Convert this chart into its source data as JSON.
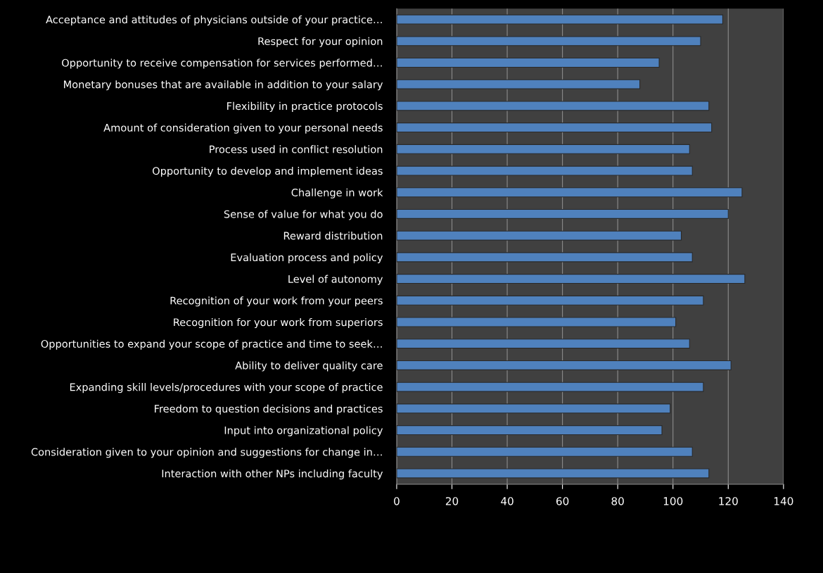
{
  "chart_data": {
    "type": "bar",
    "orientation": "horizontal",
    "categories": [
      "Acceptance and attitudes of physicians outside of your practice…",
      "Respect for your opinion",
      "Opportunity to receive compensation for services performed…",
      "Monetary bonuses that are available in addition to your salary",
      "Flexibility in practice protocols",
      "Amount of consideration given to your personal needs",
      "Process used in conflict resolution",
      "Opportunity to develop and implement ideas",
      "Challenge in work",
      "Sense of value for what you do",
      "Reward distribution",
      "Evaluation process and policy",
      "Level of autonomy",
      "Recognition of your work from your peers",
      "Recognition for your work from superiors",
      "Opportunities to expand your scope of practice and time to seek…",
      "Ability to deliver quality care",
      "Expanding skill levels/procedures with your scope of practice",
      "Freedom to question decisions and practices",
      "Input into organizational policy",
      "Consideration given to your opinion and suggestions for change in…",
      "Interaction with other NPs including faculty"
    ],
    "values": [
      118,
      110,
      95,
      88,
      113,
      114,
      106,
      107,
      125,
      120,
      103,
      107,
      126,
      111,
      101,
      106,
      121,
      111,
      99,
      96,
      107,
      113
    ],
    "color": "#4f81bd",
    "xlim": [
      0,
      140
    ],
    "xticks": [
      0,
      20,
      40,
      60,
      80,
      100,
      120,
      140
    ],
    "grid": "x"
  }
}
